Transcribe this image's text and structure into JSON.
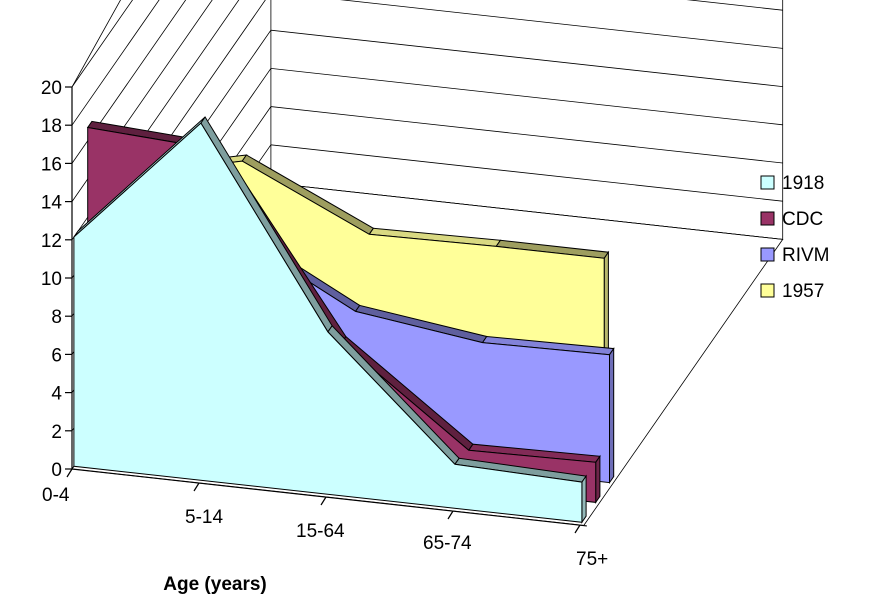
{
  "chart_data": {
    "type": "area",
    "view": "3d",
    "categories": [
      "0-4",
      "5-14",
      "15-64",
      "65-74",
      "75+"
    ],
    "series": [
      {
        "name": "1918",
        "values": [
          12,
          18.7,
          8.5,
          2.3,
          2.1
        ],
        "color": "#ccffff"
      },
      {
        "name": "CDC",
        "values": [
          16.7,
          16.3,
          6.9,
          2.0,
          2.1
        ],
        "color": "#993366"
      },
      {
        "name": "RIVM",
        "values": [
          12.8,
          11,
          7.5,
          6.6,
          6.7
        ],
        "color": "#9999ff"
      },
      {
        "name": "1957",
        "values": [
          12.1,
          13.6,
          10.5,
          10.6,
          null
        ],
        "color": "#ffff99"
      }
    ],
    "y_ticks": [
      "0",
      "2",
      "4",
      "6",
      "8",
      "10",
      "12",
      "14",
      "16",
      "18",
      "20"
    ],
    "xlabel": "Age (years)",
    "ylabel": "",
    "ylim": [
      0,
      20
    ],
    "grid": true,
    "legend": "right"
  }
}
